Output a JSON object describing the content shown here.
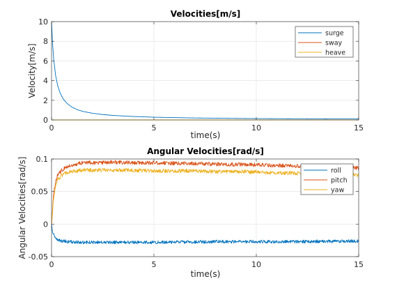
{
  "chart_data": [
    {
      "type": "line",
      "title": "Velocities[m/s]",
      "xlabel": "time(s)",
      "ylabel": "Velocity[m/s]",
      "xlim": [
        0,
        15
      ],
      "ylim": [
        0,
        10
      ],
      "xticks": [
        0,
        5,
        10,
        15
      ],
      "yticks": [
        0,
        2,
        4,
        6,
        8,
        10
      ],
      "xtick_labels": [
        "0",
        "5",
        "10",
        "15"
      ],
      "ytick_labels": [
        "0",
        "2",
        "4",
        "6",
        "8",
        "10"
      ],
      "grid": true,
      "legend_position": "top-right",
      "series": [
        {
          "name": "surge",
          "color": "#0072BD",
          "x": [
            0,
            0.05,
            0.1,
            0.2,
            0.3,
            0.4,
            0.5,
            0.6,
            0.8,
            1.0,
            1.25,
            1.5,
            2,
            2.5,
            3,
            4,
            5,
            6,
            7,
            8,
            9,
            10,
            11,
            12,
            13,
            14,
            15
          ],
          "y": [
            10,
            7.8,
            6.3,
            4.5,
            3.5,
            2.85,
            2.4,
            2.05,
            1.6,
            1.3,
            1.05,
            0.88,
            0.68,
            0.55,
            0.46,
            0.35,
            0.28,
            0.24,
            0.2,
            0.18,
            0.16,
            0.14,
            0.13,
            0.12,
            0.11,
            0.1,
            0.1
          ]
        },
        {
          "name": "sway",
          "color": "#D95319",
          "x": [
            0,
            15
          ],
          "y": [
            0,
            0
          ]
        },
        {
          "name": "heave",
          "color": "#EDB120",
          "x": [
            0,
            15
          ],
          "y": [
            0,
            0
          ]
        }
      ]
    },
    {
      "type": "line",
      "title": "Angular Velocities[rad/s]",
      "xlabel": "time(s)",
      "ylabel": "Angular Velocities[rad/s]",
      "xlim": [
        0,
        15
      ],
      "ylim": [
        -0.05,
        0.1
      ],
      "xticks": [
        0,
        5,
        10,
        15
      ],
      "yticks": [
        -0.05,
        0,
        0.05,
        0.1
      ],
      "xtick_labels": [
        "0",
        "5",
        "10",
        "15"
      ],
      "ytick_labels": [
        "-0.05",
        "0",
        "0.05",
        "0.1"
      ],
      "grid": true,
      "legend_position": "top-right",
      "series": [
        {
          "name": "roll",
          "color": "#0072BD",
          "noise": 0.0025,
          "x": [
            0,
            0.05,
            0.1,
            0.2,
            0.3,
            0.5,
            0.8,
            1.5,
            3,
            5,
            8,
            10,
            12,
            15
          ],
          "y": [
            0,
            -0.01,
            -0.016,
            -0.021,
            -0.024,
            -0.026,
            -0.027,
            -0.028,
            -0.028,
            -0.028,
            -0.027,
            -0.027,
            -0.027,
            -0.026
          ]
        },
        {
          "name": "pitch",
          "color": "#D95319",
          "noise": 0.003,
          "x": [
            0,
            0.1,
            0.2,
            0.3,
            0.5,
            0.8,
            1.5,
            3,
            5,
            8,
            10,
            12,
            13,
            15
          ],
          "y": [
            0,
            0.045,
            0.065,
            0.075,
            0.083,
            0.089,
            0.094,
            0.095,
            0.094,
            0.092,
            0.091,
            0.089,
            0.088,
            0.086
          ]
        },
        {
          "name": "yaw",
          "color": "#EDB120",
          "noise": 0.003,
          "x": [
            0,
            0.1,
            0.2,
            0.3,
            0.5,
            0.8,
            1.5,
            3,
            5,
            8,
            10,
            12,
            13,
            15
          ],
          "y": [
            0,
            0.04,
            0.058,
            0.068,
            0.075,
            0.08,
            0.083,
            0.083,
            0.082,
            0.081,
            0.08,
            0.078,
            0.077,
            0.075
          ]
        }
      ]
    }
  ]
}
